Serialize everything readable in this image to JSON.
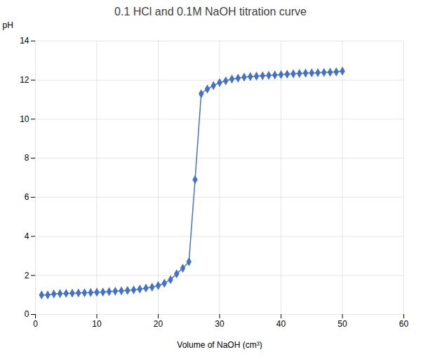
{
  "chart_data": {
    "type": "line",
    "title": "0.1 HCl and 0.1M NaOH titration curve",
    "xlabel": "Volume of NaOH (cm³)",
    "ylabel": "pH",
    "x": [
      1,
      2,
      3,
      4,
      5,
      6,
      7,
      8,
      9,
      10,
      11,
      12,
      13,
      14,
      15,
      16,
      17,
      18,
      19,
      20,
      21,
      22,
      23,
      24,
      25,
      26,
      27,
      28,
      29,
      30,
      31,
      32,
      33,
      34,
      35,
      36,
      37,
      38,
      39,
      40,
      41,
      42,
      43,
      44,
      45,
      46,
      47,
      48,
      49,
      50
    ],
    "values": [
      1.0,
      1.0,
      1.05,
      1.07,
      1.08,
      1.09,
      1.1,
      1.11,
      1.12,
      1.14,
      1.15,
      1.17,
      1.19,
      1.21,
      1.23,
      1.26,
      1.3,
      1.35,
      1.4,
      1.48,
      1.6,
      1.78,
      2.08,
      2.37,
      2.7,
      6.9,
      11.3,
      11.54,
      11.72,
      11.87,
      11.96,
      12.05,
      12.1,
      12.15,
      12.18,
      12.2,
      12.22,
      12.24,
      12.26,
      12.28,
      12.3,
      12.32,
      12.34,
      12.36,
      12.37,
      12.38,
      12.39,
      12.4,
      12.42,
      12.46
    ],
    "color": "#4472C4",
    "marker": "diamond",
    "line_style": "solid",
    "xlim": [
      0,
      60
    ],
    "ylim": [
      0,
      14
    ],
    "xticks": [
      0,
      10,
      20,
      30,
      40,
      50,
      60
    ],
    "yticks": [
      0,
      2,
      4,
      6,
      8,
      10,
      12,
      14
    ],
    "grid": true
  }
}
